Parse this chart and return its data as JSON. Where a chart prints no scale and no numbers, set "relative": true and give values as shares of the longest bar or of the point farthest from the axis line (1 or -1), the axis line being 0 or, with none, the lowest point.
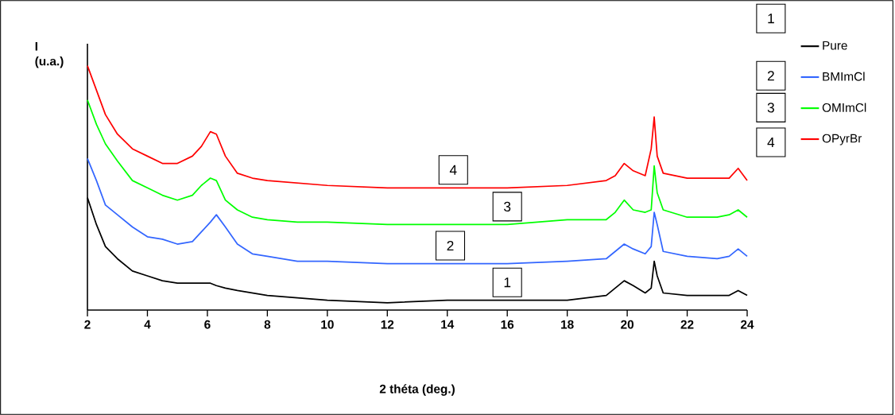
{
  "chart_data": {
    "type": "line",
    "relative": true,
    "xlabel": "2 théta (deg.)",
    "ylabel": "I (u.a.)",
    "x": [
      2,
      2.3,
      2.6,
      3,
      3.5,
      4,
      4.5,
      5,
      5.5,
      5.8,
      6.1,
      6.3,
      6.6,
      7,
      7.5,
      8,
      9,
      10,
      12,
      14,
      16,
      18,
      19.3,
      19.6,
      19.9,
      20.2,
      20.6,
      20.8,
      20.9,
      21.0,
      21.2,
      22,
      23,
      23.4,
      23.7,
      24
    ],
    "xlim": [
      2,
      24
    ],
    "xticks": [
      2,
      4,
      6,
      8,
      10,
      12,
      14,
      16,
      18,
      20,
      22,
      24
    ],
    "legend": "top right",
    "series": [
      {
        "name": "Pure",
        "color": "#000000",
        "values": [
          0.46,
          0.35,
          0.26,
          0.21,
          0.16,
          0.14,
          0.12,
          0.11,
          0.11,
          0.11,
          0.11,
          0.1,
          0.09,
          0.08,
          0.07,
          0.06,
          0.05,
          0.04,
          0.03,
          0.04,
          0.04,
          0.04,
          0.06,
          0.09,
          0.12,
          0.1,
          0.07,
          0.09,
          0.2,
          0.14,
          0.07,
          0.06,
          0.06,
          0.06,
          0.08,
          0.06
        ]
      },
      {
        "name": "BMImCl",
        "color": "#3366ff",
        "values": [
          0.62,
          0.53,
          0.43,
          0.39,
          0.34,
          0.3,
          0.29,
          0.27,
          0.28,
          0.32,
          0.36,
          0.39,
          0.34,
          0.27,
          0.23,
          0.22,
          0.2,
          0.2,
          0.19,
          0.19,
          0.19,
          0.2,
          0.21,
          0.24,
          0.27,
          0.25,
          0.23,
          0.26,
          0.4,
          0.35,
          0.24,
          0.22,
          0.21,
          0.22,
          0.25,
          0.22
        ]
      },
      {
        "name": "OMImCl",
        "color": "#00ff00",
        "values": [
          0.86,
          0.76,
          0.68,
          0.61,
          0.53,
          0.5,
          0.47,
          0.45,
          0.47,
          0.51,
          0.54,
          0.53,
          0.45,
          0.41,
          0.38,
          0.37,
          0.36,
          0.36,
          0.35,
          0.35,
          0.35,
          0.37,
          0.37,
          0.4,
          0.45,
          0.41,
          0.4,
          0.41,
          0.59,
          0.48,
          0.41,
          0.38,
          0.38,
          0.39,
          0.41,
          0.38
        ]
      },
      {
        "name": "OPyrBr",
        "color": "#ff0000",
        "values": [
          1.0,
          0.9,
          0.8,
          0.72,
          0.66,
          0.63,
          0.6,
          0.6,
          0.63,
          0.67,
          0.73,
          0.72,
          0.63,
          0.56,
          0.54,
          0.53,
          0.52,
          0.51,
          0.5,
          0.5,
          0.5,
          0.51,
          0.53,
          0.55,
          0.6,
          0.57,
          0.55,
          0.66,
          0.79,
          0.63,
          0.56,
          0.54,
          0.54,
          0.54,
          0.58,
          0.53
        ]
      }
    ],
    "annotations": [
      {
        "text": "1",
        "x": 16.0,
        "y": 0.04
      },
      {
        "text": "2",
        "x": 14.1,
        "y": 0.19
      },
      {
        "text": "3",
        "x": 16.0,
        "y": 0.35
      },
      {
        "text": "4",
        "x": 14.2,
        "y": 0.5
      },
      "1",
      "2",
      "3",
      "4"
    ]
  }
}
